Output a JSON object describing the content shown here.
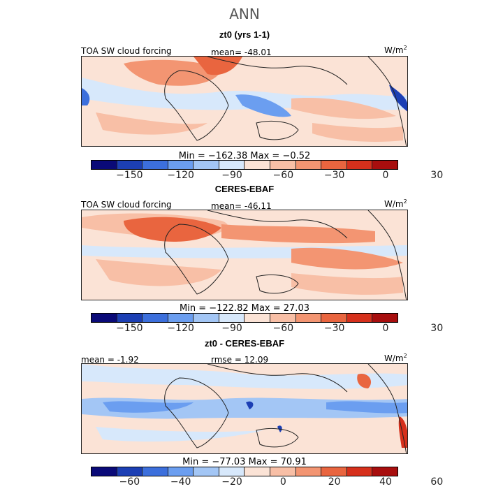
{
  "title": "ANN",
  "panels": [
    {
      "subtitle": "zt0 (yrs 1-1)",
      "left_label": "TOA SW cloud forcing",
      "center_label": "mean=  -48.01",
      "units": "W/m",
      "units_sup": "2",
      "minmax": "Min = −162.38 Max =  −0.52",
      "colorbar_ticks": [
        "−150",
        "−120",
        "−90",
        "−60",
        "−30",
        "0",
        "30"
      ]
    },
    {
      "subtitle": "CERES-EBAF",
      "left_label": "TOA SW cloud forcing",
      "center_label": "mean=  -46.11",
      "units": "W/m",
      "units_sup": "2",
      "minmax": "Min = −122.82 Max =  27.03",
      "colorbar_ticks": [
        "−150",
        "−120",
        "−90",
        "−60",
        "−30",
        "0",
        "30"
      ]
    },
    {
      "subtitle": "zt0 - CERES-EBAF",
      "left_label": "mean =   -1.92",
      "center_label": "rmse =   12.09",
      "units": "W/m",
      "units_sup": "2",
      "minmax": "Min = −77.03 Max =  70.91",
      "colorbar_ticks": [
        "−60",
        "−40",
        "−20",
        "0",
        "20",
        "40",
        "60"
      ]
    }
  ],
  "colorbar_colors": [
    "#0a0a78",
    "#1c3fb4",
    "#3c6fdc",
    "#6b9ef0",
    "#a3c6f5",
    "#d7e8fb",
    "#fbe3d6",
    "#f8bfa6",
    "#f39572",
    "#e9653f",
    "#d6301c",
    "#a80e0e"
  ]
}
